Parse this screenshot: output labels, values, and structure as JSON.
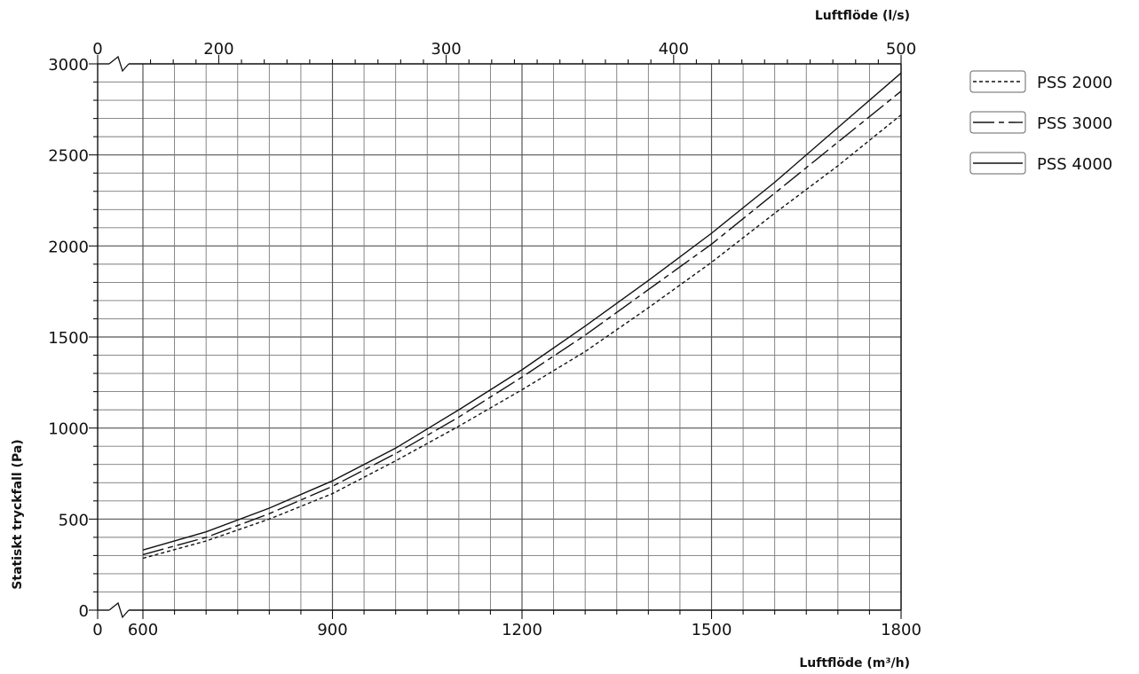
{
  "chart_data": {
    "type": "line",
    "title": "",
    "xlabel": "Luftflöde (m³/h)",
    "x2label": "Luftflöde (l/s)",
    "ylabel": "Statiskt tryckfall (Pa)",
    "xlim": [
      600,
      1800
    ],
    "ylim": [
      0,
      3000
    ],
    "x_ticks": [
      "0",
      "600",
      "900",
      "1200",
      "1500",
      "1800"
    ],
    "x2_ticks": [
      "0",
      "200",
      "300",
      "400",
      "500"
    ],
    "y_ticks": [
      "0",
      "500",
      "1000",
      "1500",
      "2000",
      "2500",
      "3000"
    ],
    "grid": true,
    "axis_breaks": [
      "x",
      "x2"
    ],
    "legend_position": "right",
    "series": [
      {
        "name": "PSS 2000",
        "style": "dotted",
        "color": "#111111",
        "x": [
          600,
          700,
          800,
          900,
          1000,
          1100,
          1200,
          1300,
          1400,
          1500,
          1600,
          1700,
          1800
        ],
        "y": [
          285,
          380,
          500,
          640,
          820,
          1010,
          1210,
          1420,
          1660,
          1910,
          2180,
          2440,
          2720
        ]
      },
      {
        "name": "PSS 3000",
        "style": "dash-long",
        "color": "#111111",
        "x": [
          600,
          700,
          800,
          900,
          1000,
          1100,
          1200,
          1300,
          1400,
          1500,
          1600,
          1700,
          1800
        ],
        "y": [
          305,
          400,
          530,
          680,
          860,
          1060,
          1280,
          1510,
          1760,
          2010,
          2290,
          2570,
          2850
        ]
      },
      {
        "name": "PSS 4000",
        "style": "solid",
        "color": "#111111",
        "x": [
          600,
          700,
          800,
          900,
          1000,
          1100,
          1200,
          1300,
          1400,
          1500,
          1600,
          1700,
          1800
        ],
        "y": [
          330,
          430,
          560,
          710,
          890,
          1100,
          1320,
          1560,
          1810,
          2070,
          2350,
          2650,
          2950
        ]
      }
    ]
  }
}
